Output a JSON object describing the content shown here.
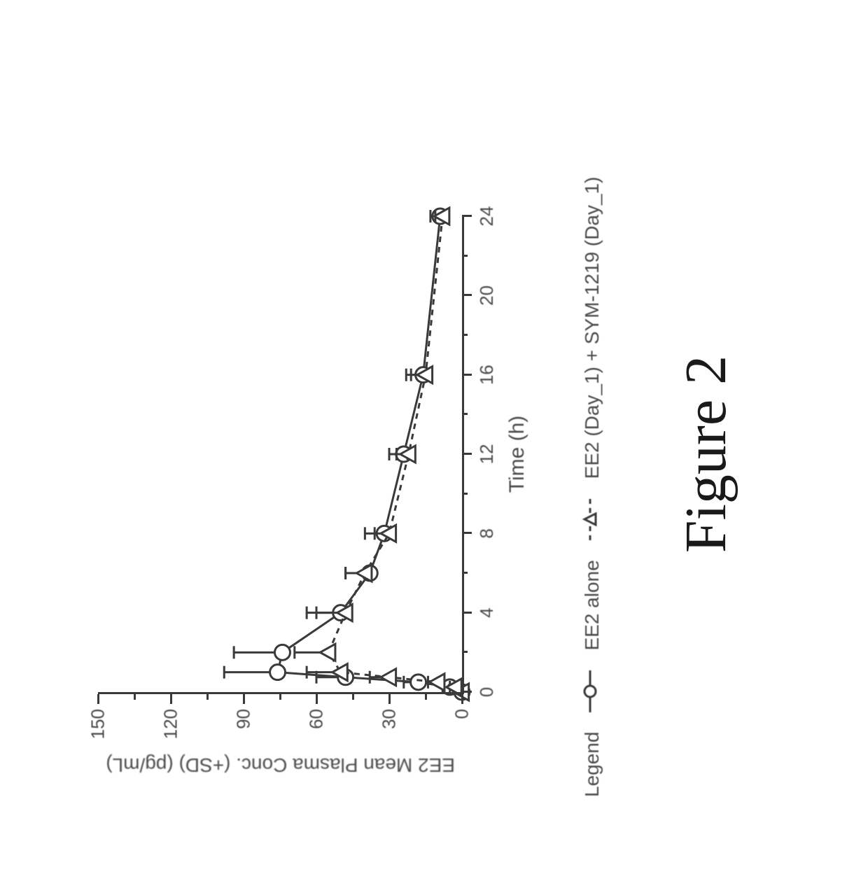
{
  "figure_label": "Figure 2",
  "chart": {
    "type": "line-with-error-bars",
    "background_color": "#ffffff",
    "axis_color": "#3a3a3a",
    "text_color": "#4a4a4a",
    "label_fontsize": 28,
    "tick_fontsize": 26,
    "axis_line_width": 3,
    "major_tick_len": 14,
    "minor_tick_len": 8,
    "xlabel": "Time (h)",
    "ylabel": "EE2 Mean Plasma Conc. (+SD) (pg/mL)",
    "xlim": [
      0,
      24
    ],
    "ylim": [
      0,
      150
    ],
    "xticks_major": [
      0,
      4,
      8,
      12,
      16,
      20,
      24
    ],
    "xticks_minor": [
      2,
      6,
      10,
      14,
      18,
      22
    ],
    "yticks_major": [
      0,
      30,
      60,
      90,
      120,
      150
    ],
    "yticks_minor": [
      15,
      45,
      75,
      105,
      135
    ],
    "plot_width_share": 0.54,
    "plot_height_share": 0.42,
    "series": [
      {
        "name": "EE2 alone",
        "label": "EE2 alone",
        "color": "#3a3a3a",
        "line_style": "solid",
        "line_width": 3,
        "marker": "circle-open",
        "marker_size": 11,
        "x": [
          0,
          0.25,
          0.5,
          0.75,
          1,
          2,
          4,
          6,
          8,
          12,
          16,
          24
        ],
        "y": [
          0,
          5,
          18,
          48,
          76,
          74,
          50,
          38,
          32,
          24,
          16,
          9
        ],
        "sd": [
          0,
          3,
          6,
          12,
          22,
          20,
          14,
          10,
          8,
          6,
          7,
          4
        ]
      },
      {
        "name": "EE2 (Day_1) + SYM-1219 (Day_1)",
        "label": "EE2 (Day_1) + SYM-1219 (Day_1)",
        "color": "#3a3a3a",
        "line_style": "dashed",
        "line_width": 3,
        "marker": "triangle-open",
        "marker_size": 12,
        "x": [
          0,
          0.25,
          0.5,
          0.75,
          1,
          2,
          4,
          6,
          8,
          12,
          16,
          24
        ],
        "y": [
          0,
          3,
          10,
          30,
          50,
          55,
          48,
          40,
          30,
          22,
          15,
          8
        ],
        "sd": [
          0,
          2,
          4,
          8,
          14,
          14,
          12,
          8,
          6,
          5,
          6,
          3
        ]
      }
    ],
    "legend": {
      "title": "Legend",
      "position_y_share": 0.7
    }
  }
}
